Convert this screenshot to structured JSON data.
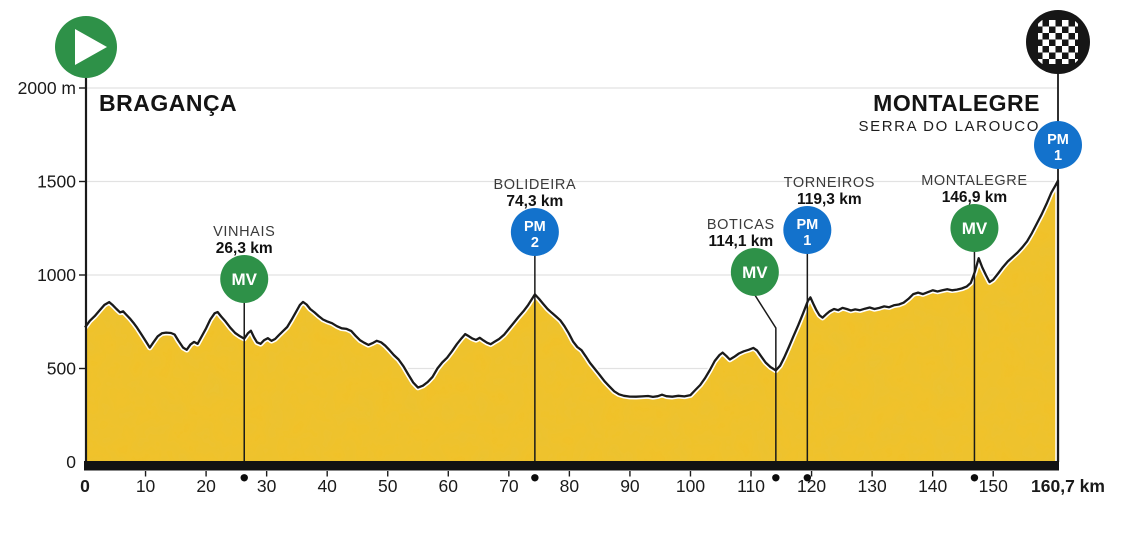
{
  "meta": {
    "start_label": "BRAGANÇA",
    "finish_label": "MONTALEGRE",
    "finish_sublabel": "SERRA DO LAROUCO"
  },
  "colors": {
    "profile_fill": "#F2C127",
    "profile_grain": "#C28E0C",
    "outline": "#1A1A1A",
    "white_gap": "#FFFFFF",
    "mv_green": "#2E9148",
    "pm_blue": "#1372CC",
    "finish_black": "#161616",
    "grid": "#E2E2E2",
    "axis_text": "#1A1A1A",
    "marker_name_text": "#3A3A3A",
    "marker_km_text": "#111111"
  },
  "chart_data": {
    "type": "area",
    "xlabel_unit": "km",
    "ylabel_unit": "m",
    "xlim": [
      0,
      160.7
    ],
    "ylim": [
      0,
      2000
    ],
    "x_ticks": [
      0,
      10,
      20,
      30,
      40,
      50,
      60,
      70,
      80,
      90,
      100,
      110,
      120,
      130,
      140,
      150
    ],
    "x_end_label": "160,7 km",
    "y_ticks": [
      {
        "value": 0,
        "label": "0"
      },
      {
        "value": 500,
        "label": "500"
      },
      {
        "value": 1000,
        "label": "1000"
      },
      {
        "value": 1500,
        "label": "1500"
      },
      {
        "value": 2000,
        "label": "2000 m"
      }
    ],
    "start": {
      "name": "BRAGANÇA",
      "km": 0,
      "elevation_m": 720
    },
    "finish": {
      "name": "MONTALEGRE",
      "subname": "SERRA DO LAROUCO",
      "km": 160.7,
      "elevation_m": 1505
    },
    "markers": [
      {
        "id": "vinhais",
        "name": "VINHAIS",
        "distance_label": "26,3 km",
        "km": 26.3,
        "kind": "MV",
        "badge": "MV"
      },
      {
        "id": "bolideira",
        "name": "BOLIDEIRA",
        "distance_label": "74,3 km",
        "km": 74.3,
        "kind": "PM",
        "badge": "PM",
        "category": "2"
      },
      {
        "id": "boticas",
        "name": "BOTICAS",
        "distance_label": "114,1 km",
        "km": 114.1,
        "kind": "MV",
        "badge": "MV"
      },
      {
        "id": "torneiros",
        "name": "TORNEIROS",
        "distance_label": "119,3 km",
        "km": 119.3,
        "kind": "PM",
        "badge": "PM",
        "category": "1"
      },
      {
        "id": "montalegre-mv",
        "name": "MONTALEGRE",
        "distance_label": "146,9 km",
        "km": 146.9,
        "kind": "MV",
        "badge": "MV"
      },
      {
        "id": "serra-do-larouco-pm",
        "name": "",
        "distance_label": "",
        "km": 160.7,
        "kind": "PM",
        "badge": "PM",
        "category": "1",
        "at_finish": true
      }
    ],
    "profile_km_m": [
      [
        0,
        720
      ],
      [
        0.8,
        755
      ],
      [
        1.6,
        780
      ],
      [
        2.4,
        810
      ],
      [
        3.2,
        840
      ],
      [
        4,
        855
      ],
      [
        4.6,
        838
      ],
      [
        5.2,
        818
      ],
      [
        5.8,
        800
      ],
      [
        6.3,
        806
      ],
      [
        6.8,
        788
      ],
      [
        7.4,
        768
      ],
      [
        8,
        745
      ],
      [
        8.6,
        718
      ],
      [
        9.2,
        688
      ],
      [
        10,
        648
      ],
      [
        10.7,
        612
      ],
      [
        11.3,
        640
      ],
      [
        12,
        672
      ],
      [
        12.7,
        688
      ],
      [
        13.4,
        692
      ],
      [
        14.2,
        690
      ],
      [
        14.8,
        682
      ],
      [
        15.4,
        650
      ],
      [
        16.2,
        612
      ],
      [
        16.8,
        600
      ],
      [
        17.4,
        628
      ],
      [
        18,
        642
      ],
      [
        18.6,
        632
      ],
      [
        19.2,
        668
      ],
      [
        20,
        715
      ],
      [
        20.7,
        762
      ],
      [
        21.4,
        795
      ],
      [
        21.9,
        802
      ],
      [
        22.5,
        778
      ],
      [
        23.2,
        752
      ],
      [
        24,
        718
      ],
      [
        24.8,
        690
      ],
      [
        25.6,
        672
      ],
      [
        26.3,
        660
      ],
      [
        26.9,
        688
      ],
      [
        27.4,
        702
      ],
      [
        27.9,
        668
      ],
      [
        28.4,
        640
      ],
      [
        29,
        632
      ],
      [
        29.6,
        652
      ],
      [
        30.2,
        662
      ],
      [
        30.8,
        648
      ],
      [
        31.4,
        658
      ],
      [
        32,
        678
      ],
      [
        32.7,
        700
      ],
      [
        33.4,
        722
      ],
      [
        34.1,
        760
      ],
      [
        34.8,
        800
      ],
      [
        35.5,
        840
      ],
      [
        36,
        856
      ],
      [
        36.6,
        842
      ],
      [
        37.2,
        818
      ],
      [
        37.9,
        800
      ],
      [
        38.6,
        780
      ],
      [
        39.3,
        762
      ],
      [
        40,
        752
      ],
      [
        40.8,
        742
      ],
      [
        41.6,
        726
      ],
      [
        42.4,
        715
      ],
      [
        43.2,
        712
      ],
      [
        44,
        700
      ],
      [
        44.7,
        675
      ],
      [
        45.4,
        652
      ],
      [
        46.1,
        638
      ],
      [
        46.8,
        626
      ],
      [
        47.5,
        636
      ],
      [
        48.2,
        648
      ],
      [
        48.9,
        640
      ],
      [
        49.6,
        622
      ],
      [
        50.3,
        598
      ],
      [
        51,
        572
      ],
      [
        51.8,
        548
      ],
      [
        52.6,
        512
      ],
      [
        53.4,
        468
      ],
      [
        54.2,
        425
      ],
      [
        55,
        398
      ],
      [
        55.8,
        408
      ],
      [
        56.6,
        428
      ],
      [
        57.4,
        455
      ],
      [
        58.2,
        500
      ],
      [
        59,
        532
      ],
      [
        59.8,
        558
      ],
      [
        60.6,
        592
      ],
      [
        61.4,
        630
      ],
      [
        62.2,
        662
      ],
      [
        62.8,
        684
      ],
      [
        63.4,
        672
      ],
      [
        64,
        660
      ],
      [
        64.6,
        653
      ],
      [
        65.2,
        664
      ],
      [
        65.8,
        650
      ],
      [
        66.4,
        638
      ],
      [
        67,
        630
      ],
      [
        67.6,
        642
      ],
      [
        68.4,
        658
      ],
      [
        69.2,
        680
      ],
      [
        70,
        712
      ],
      [
        70.8,
        744
      ],
      [
        71.6,
        776
      ],
      [
        72.4,
        806
      ],
      [
        73.2,
        840
      ],
      [
        74.3,
        896
      ],
      [
        75,
        872
      ],
      [
        75.7,
        845
      ],
      [
        76.4,
        818
      ],
      [
        77.1,
        798
      ],
      [
        77.8,
        778
      ],
      [
        78.5,
        758
      ],
      [
        79.2,
        726
      ],
      [
        79.9,
        688
      ],
      [
        80.6,
        645
      ],
      [
        81.3,
        615
      ],
      [
        82,
        598
      ],
      [
        82.7,
        565
      ],
      [
        83.4,
        530
      ],
      [
        84.2,
        498
      ],
      [
        85,
        465
      ],
      [
        85.8,
        432
      ],
      [
        86.6,
        405
      ],
      [
        87.4,
        378
      ],
      [
        88.2,
        362
      ],
      [
        89,
        354
      ],
      [
        90,
        350
      ],
      [
        91,
        349
      ],
      [
        92,
        351
      ],
      [
        93,
        353
      ],
      [
        93.8,
        348
      ],
      [
        94.6,
        352
      ],
      [
        95.3,
        360
      ],
      [
        96,
        352
      ],
      [
        97,
        349
      ],
      [
        98,
        354
      ],
      [
        99,
        351
      ],
      [
        100,
        358
      ],
      [
        100.8,
        385
      ],
      [
        101.6,
        412
      ],
      [
        102.4,
        448
      ],
      [
        103.2,
        492
      ],
      [
        104,
        540
      ],
      [
        104.8,
        572
      ],
      [
        105.3,
        585
      ],
      [
        105.9,
        568
      ],
      [
        106.5,
        548
      ],
      [
        107.2,
        562
      ],
      [
        108,
        580
      ],
      [
        108.8,
        592
      ],
      [
        109.6,
        600
      ],
      [
        110.4,
        610
      ],
      [
        111,
        596
      ],
      [
        111.7,
        564
      ],
      [
        112.4,
        532
      ],
      [
        113.2,
        508
      ],
      [
        114.1,
        490
      ],
      [
        114.8,
        515
      ],
      [
        115.5,
        560
      ],
      [
        116.2,
        612
      ],
      [
        117,
        672
      ],
      [
        117.8,
        732
      ],
      [
        118.6,
        795
      ],
      [
        119.4,
        862
      ],
      [
        119.8,
        880
      ],
      [
        120.3,
        845
      ],
      [
        120.8,
        812
      ],
      [
        121.3,
        785
      ],
      [
        121.8,
        772
      ],
      [
        122.4,
        790
      ],
      [
        123,
        806
      ],
      [
        123.7,
        818
      ],
      [
        124.4,
        812
      ],
      [
        125.1,
        824
      ],
      [
        125.8,
        818
      ],
      [
        126.5,
        810
      ],
      [
        127.2,
        816
      ],
      [
        128,
        812
      ],
      [
        128.8,
        820
      ],
      [
        129.6,
        826
      ],
      [
        130.4,
        818
      ],
      [
        131.2,
        824
      ],
      [
        132,
        832
      ],
      [
        132.8,
        828
      ],
      [
        133.6,
        838
      ],
      [
        134.4,
        842
      ],
      [
        135.2,
        852
      ],
      [
        136,
        872
      ],
      [
        136.8,
        898
      ],
      [
        137.6,
        906
      ],
      [
        138.4,
        898
      ],
      [
        139.2,
        908
      ],
      [
        140,
        918
      ],
      [
        140.8,
        912
      ],
      [
        141.6,
        918
      ],
      [
        142.4,
        924
      ],
      [
        143.2,
        918
      ],
      [
        144,
        922
      ],
      [
        144.8,
        928
      ],
      [
        145.6,
        938
      ],
      [
        146.3,
        958
      ],
      [
        147,
        1020
      ],
      [
        147.6,
        1090
      ],
      [
        148.2,
        1040
      ],
      [
        148.8,
        1000
      ],
      [
        149.4,
        962
      ],
      [
        150,
        975
      ],
      [
        150.8,
        1008
      ],
      [
        151.6,
        1042
      ],
      [
        152.4,
        1072
      ],
      [
        153.2,
        1096
      ],
      [
        154,
        1120
      ],
      [
        154.8,
        1148
      ],
      [
        155.6,
        1180
      ],
      [
        156.4,
        1225
      ],
      [
        157.2,
        1275
      ],
      [
        158,
        1325
      ],
      [
        158.8,
        1380
      ],
      [
        159.6,
        1440
      ],
      [
        160.3,
        1480
      ],
      [
        160.7,
        1505
      ]
    ]
  }
}
